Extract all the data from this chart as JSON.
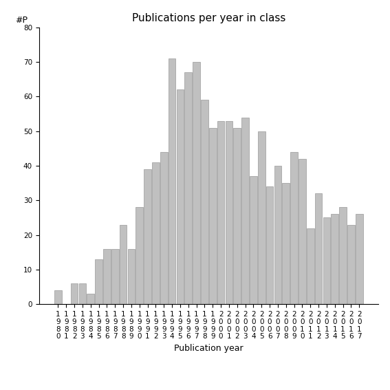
{
  "title": "Publications per year in class",
  "xlabel": "Publication year",
  "ylabel": "#P",
  "years": [
    1980,
    1981,
    1982,
    1983,
    1984,
    1985,
    1986,
    1987,
    1988,
    1989,
    1990,
    1991,
    1992,
    1993,
    1994,
    1995,
    1996,
    1997,
    1998,
    1999,
    2000,
    2001,
    2002,
    2003,
    2004,
    2005,
    2006,
    2007,
    2008,
    2009,
    2010,
    2011,
    2012,
    2013,
    2014,
    2015,
    2016,
    2017
  ],
  "values": [
    4,
    0,
    6,
    6,
    3,
    13,
    16,
    16,
    23,
    16,
    28,
    39,
    41,
    44,
    71,
    62,
    67,
    70,
    59,
    51,
    53,
    53,
    51,
    54,
    37,
    50,
    34,
    40,
    35,
    44,
    42,
    22,
    32,
    25,
    26,
    28,
    23,
    26
  ],
  "bar_color": "#c0c0c0",
  "bar_edgecolor": "#999999",
  "ylim": [
    0,
    80
  ],
  "yticks": [
    0,
    10,
    20,
    30,
    40,
    50,
    60,
    70,
    80
  ],
  "background_color": "#ffffff",
  "title_fontsize": 11,
  "axis_fontsize": 9,
  "tick_fontsize": 7.5
}
